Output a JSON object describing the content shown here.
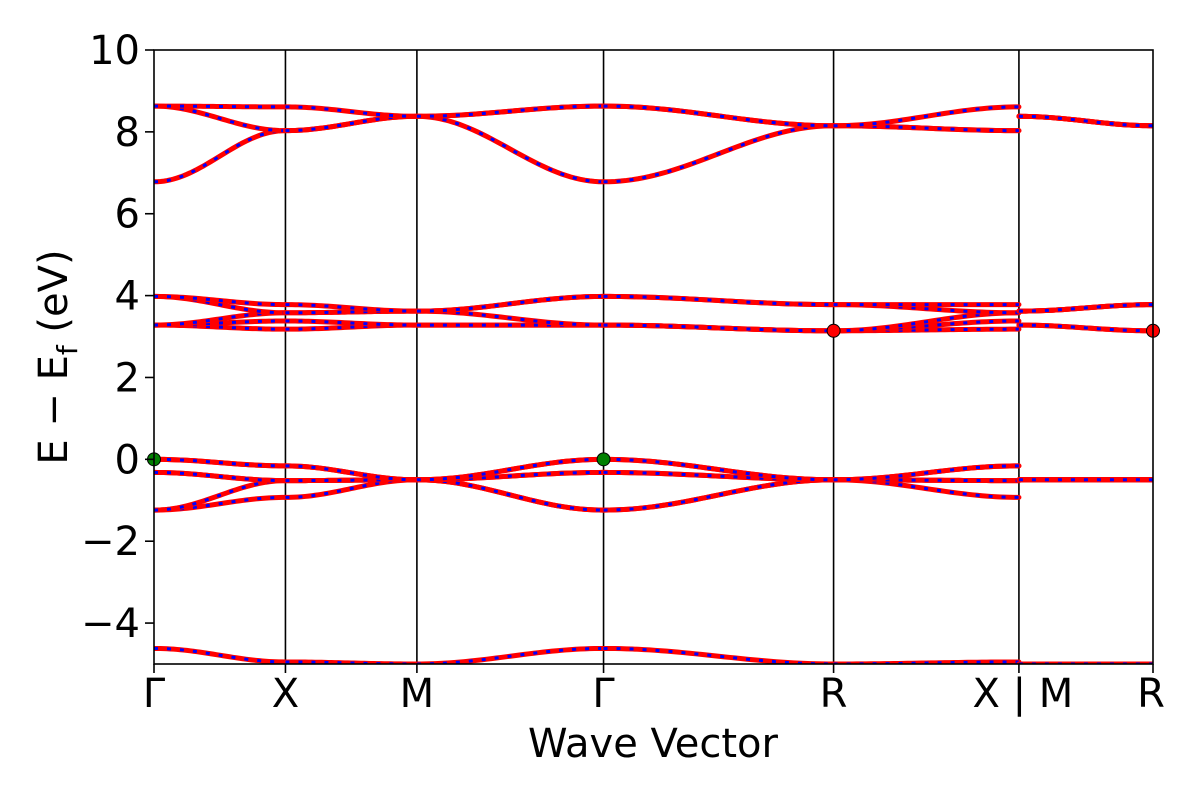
{
  "chart_data": {
    "type": "line",
    "title": "",
    "xlabel": "Wave Vector",
    "ylabel_main": "E − E",
    "ylabel_sub": "f",
    "ylabel_unit": " (eV)",
    "ylim": [
      -5,
      10
    ],
    "yticks": [
      -4,
      -2,
      0,
      2,
      4,
      6,
      8,
      10
    ],
    "ytick_labels": [
      "−4",
      "−2",
      "0",
      "2",
      "4",
      "6",
      "8",
      "10"
    ],
    "xlim": [
      0,
      7.6
    ],
    "kpoints": [
      {
        "label": "Γ",
        "x": 0
      },
      {
        "label": "X",
        "x": 1.0
      },
      {
        "label": "M",
        "x": 2.0
      },
      {
        "label": "Γ",
        "x": 3.42
      },
      {
        "label": "R",
        "x": 5.17
      },
      {
        "label": "X | M",
        "x": 6.58
      },
      {
        "label": "R",
        "x": 7.6
      }
    ],
    "grid": false,
    "line_colors": {
      "up": "#ff0000",
      "down": "#0000ff"
    },
    "extrema_colors": {
      "vbm": "#008000",
      "cbm": "#ff0000"
    },
    "segments": [
      {
        "from": "Γ",
        "to": "X",
        "x0": 0,
        "x1": 1.0,
        "bands": [
          [
            -4.62,
            -4.95
          ],
          [
            -1.24,
            -0.93
          ],
          [
            -1.24,
            -0.52
          ],
          [
            -0.32,
            -0.52
          ],
          [
            -0.32,
            -0.52
          ],
          [
            0.0,
            -0.16
          ],
          [
            0.0,
            -0.16
          ],
          [
            3.28,
            3.18
          ],
          [
            3.28,
            3.38
          ],
          [
            3.28,
            3.58
          ],
          [
            3.98,
            3.58
          ],
          [
            3.98,
            3.78
          ],
          [
            6.78,
            8.03
          ],
          [
            8.63,
            8.03
          ],
          [
            8.63,
            8.61
          ]
        ]
      },
      {
        "from": "X",
        "to": "M",
        "x0": 1.0,
        "x1": 2.0,
        "bands": [
          [
            -4.95,
            -5.0
          ],
          [
            -0.93,
            -0.5
          ],
          [
            -0.52,
            -0.5
          ],
          [
            -0.52,
            -0.5
          ],
          [
            -0.52,
            -0.5
          ],
          [
            -0.16,
            -0.5
          ],
          [
            -0.16,
            -0.5
          ],
          [
            3.18,
            3.28
          ],
          [
            3.38,
            3.28
          ],
          [
            3.58,
            3.62
          ],
          [
            3.58,
            3.62
          ],
          [
            3.78,
            3.62
          ],
          [
            8.03,
            8.38
          ],
          [
            8.03,
            8.38
          ],
          [
            8.61,
            8.38
          ]
        ]
      },
      {
        "from": "M",
        "to": "Γ",
        "x0": 2.0,
        "x1": 3.42,
        "bands": [
          [
            -5.0,
            -4.62
          ],
          [
            -0.5,
            -1.24
          ],
          [
            -0.5,
            -1.24
          ],
          [
            -0.5,
            -0.32
          ],
          [
            -0.5,
            -0.32
          ],
          [
            -0.5,
            0.0
          ],
          [
            -0.5,
            0.0
          ],
          [
            3.28,
            3.28
          ],
          [
            3.28,
            3.28
          ],
          [
            3.62,
            3.28
          ],
          [
            3.62,
            3.98
          ],
          [
            3.62,
            3.98
          ],
          [
            8.38,
            6.78
          ],
          [
            8.38,
            8.63
          ],
          [
            8.38,
            8.63
          ]
        ]
      },
      {
        "from": "Γ",
        "to": "R",
        "x0": 3.42,
        "x1": 5.17,
        "bands": [
          [
            -4.62,
            -5.0
          ],
          [
            -1.24,
            -0.5
          ],
          [
            -1.24,
            -0.5
          ],
          [
            -0.32,
            -0.5
          ],
          [
            -0.32,
            -0.5
          ],
          [
            0.0,
            -0.5
          ],
          [
            0.0,
            -0.5
          ],
          [
            3.28,
            3.14
          ],
          [
            3.28,
            3.14
          ],
          [
            3.28,
            3.14
          ],
          [
            3.98,
            3.78
          ],
          [
            3.98,
            3.78
          ],
          [
            6.78,
            8.15
          ],
          [
            8.63,
            8.15
          ],
          [
            8.63,
            8.15
          ]
        ]
      },
      {
        "from": "R",
        "to": "X",
        "x0": 5.17,
        "x1": 6.58,
        "bands": [
          [
            -5.0,
            -4.95
          ],
          [
            -0.5,
            -0.93
          ],
          [
            -0.5,
            -0.52
          ],
          [
            -0.5,
            -0.52
          ],
          [
            -0.5,
            -0.52
          ],
          [
            -0.5,
            -0.16
          ],
          [
            -0.5,
            -0.16
          ],
          [
            3.14,
            3.18
          ],
          [
            3.14,
            3.38
          ],
          [
            3.14,
            3.58
          ],
          [
            3.78,
            3.58
          ],
          [
            3.78,
            3.78
          ],
          [
            8.15,
            8.03
          ],
          [
            8.15,
            8.03
          ],
          [
            8.15,
            8.61
          ]
        ]
      },
      {
        "from": "M",
        "to": "R",
        "x0": 6.58,
        "x1": 7.6,
        "bands": [
          [
            -5.0,
            -5.0
          ],
          [
            -0.5,
            -0.5
          ],
          [
            -0.5,
            -0.5
          ],
          [
            -0.5,
            -0.5
          ],
          [
            -0.5,
            -0.5
          ],
          [
            -0.5,
            -0.5
          ],
          [
            -0.5,
            -0.5
          ],
          [
            3.28,
            3.14
          ],
          [
            3.28,
            3.14
          ],
          [
            3.62,
            3.78
          ],
          [
            3.62,
            3.78
          ],
          [
            3.62,
            3.78
          ],
          [
            8.38,
            8.15
          ],
          [
            8.38,
            8.15
          ],
          [
            8.38,
            8.15
          ]
        ]
      }
    ],
    "extrema": [
      {
        "kind": "vbm",
        "x": 0,
        "y": 0.0
      },
      {
        "kind": "vbm",
        "x": 3.42,
        "y": 0.0
      },
      {
        "kind": "cbm",
        "x": 5.17,
        "y": 3.14
      },
      {
        "kind": "cbm",
        "x": 7.6,
        "y": 3.14
      }
    ]
  }
}
